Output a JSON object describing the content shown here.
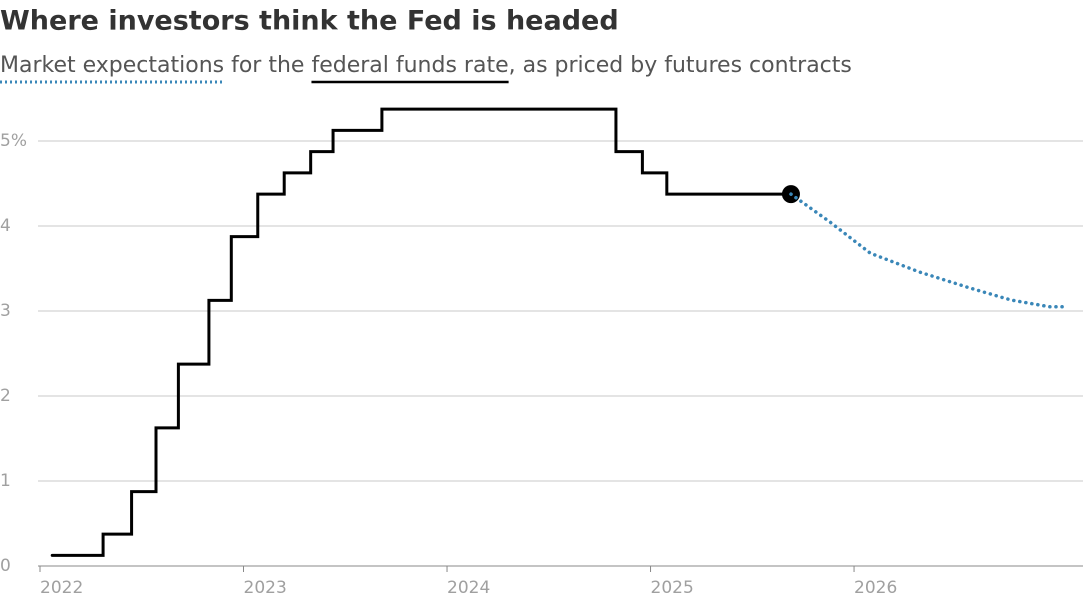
{
  "chart_data": {
    "type": "line",
    "title": "Where investors think the Fed is headed",
    "subtitle_joiner": "for the",
    "subtitle_tail": ", as priced by futures contracts",
    "line_shape_first_series": "step",
    "xlim": [
      2022,
      2027.125
    ],
    "xticks": [
      2022,
      2023,
      2024,
      2025,
      2026
    ],
    "ylim": [
      0,
      5.45
    ],
    "yticks": [
      0,
      1,
      2,
      3,
      4,
      {
        "value": 5,
        "label": "5%"
      }
    ],
    "grid": true,
    "series": [
      {
        "name": "federal funds rate",
        "color": "#000000",
        "style": "solid",
        "end_marker": true,
        "x": [
          2022.06,
          2022.31,
          2022.45,
          2022.57,
          2022.68,
          2022.83,
          2022.94,
          2023.07,
          2023.2,
          2023.33,
          2023.44,
          2023.68,
          2024.83,
          2024.96,
          2025.08,
          2025.69
        ],
        "values": [
          0.125,
          0.375,
          0.875,
          1.625,
          2.375,
          3.125,
          3.875,
          4.375,
          4.625,
          4.875,
          5.125,
          5.375,
          4.875,
          4.625,
          4.375,
          4.375
        ]
      },
      {
        "name": "Market expectations",
        "color": "#3a87b8",
        "style": "dotted",
        "end_marker": false,
        "x": [
          2025.69,
          2025.88,
          2026.08,
          2026.32,
          2026.57,
          2026.77,
          2026.96,
          2027.05
        ],
        "values": [
          4.375,
          4.05,
          3.68,
          3.46,
          3.27,
          3.13,
          3.05,
          3.05
        ]
      }
    ]
  }
}
